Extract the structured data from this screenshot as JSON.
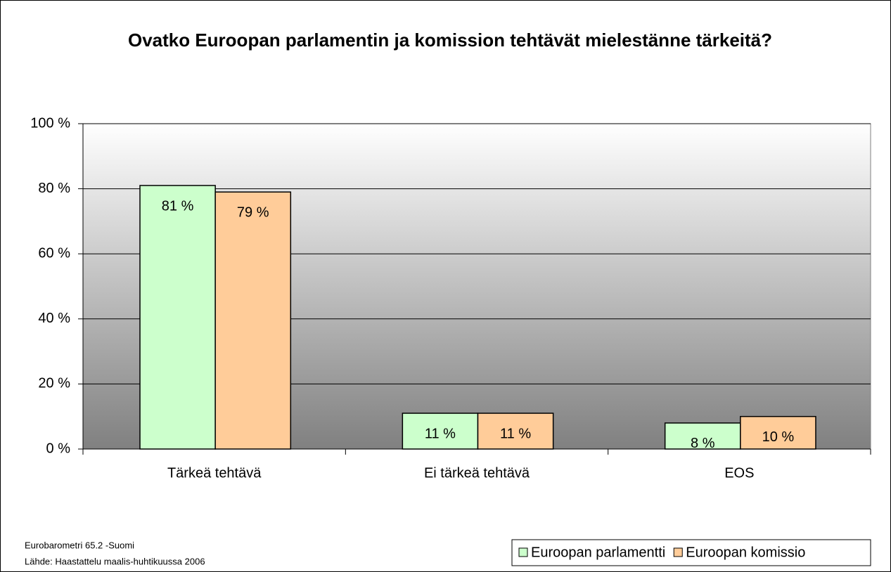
{
  "chart_data": {
    "type": "bar",
    "title": "Ovatko Euroopan parlamentin ja komission tehtävät mielestänne tärkeitä?",
    "categories": [
      "Tärkeä tehtävä",
      "Ei tärkeä tehtävä",
      "EOS"
    ],
    "series": [
      {
        "name": "Euroopan parlamentti",
        "color": "#ccffcc",
        "values": [
          81,
          11,
          8
        ],
        "value_labels": [
          "81 %",
          "11 %",
          "8 %"
        ]
      },
      {
        "name": "Euroopan komissio",
        "color": "#ffcc99",
        "values": [
          79,
          11,
          10
        ],
        "value_labels": [
          "79 %",
          "11 %",
          "10 %"
        ]
      }
    ],
    "ylim": [
      0,
      100
    ],
    "yticks": [
      {
        "value": 0,
        "label": "0 %"
      },
      {
        "value": 20,
        "label": "20 %"
      },
      {
        "value": 40,
        "label": "40 %"
      },
      {
        "value": 60,
        "label": "60 %"
      },
      {
        "value": 80,
        "label": "80 %"
      },
      {
        "value": 100,
        "label": "100 %"
      }
    ],
    "grid": true,
    "legend": "bottom-right",
    "notes": [
      "Eurobarometri 65.2 -Suomi",
      "Lähde: Haastattelu maalis-huhtikuussa 2006"
    ]
  }
}
